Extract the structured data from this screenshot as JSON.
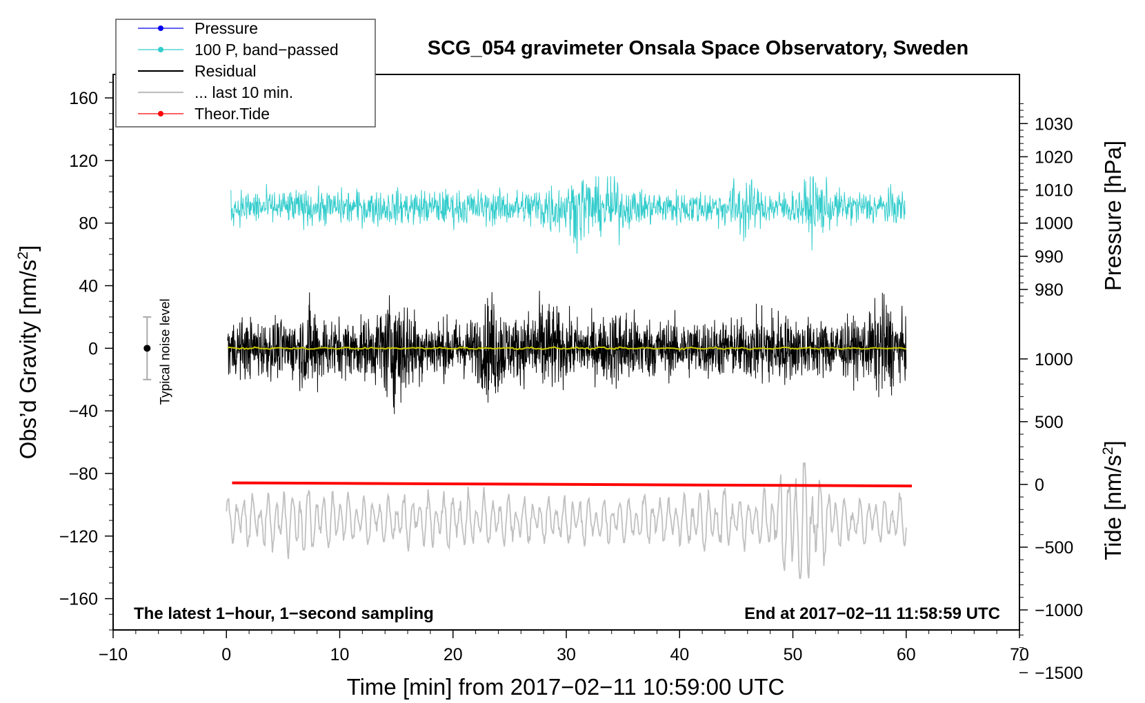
{
  "chart_data": {
    "type": "line",
    "title": "SCG_054 gravimeter Onsala Space Observatory, Sweden",
    "xlabel": "Time [min] from 2017−02−11 10:59:00 UTC",
    "ylabel_left_main": "Obs’d Gravity [nm/s",
    "ylabel_left_sup": "2",
    "ylabel_left_close": "]",
    "ylabel_right_pressure": "Pressure [hPa]",
    "ylabel_right_tide_main": "Tide [nm/s",
    "ylabel_right_tide_sup": "2",
    "ylabel_right_tide_close": "]",
    "xlim": [
      -10,
      70
    ],
    "ylim": [
      -180,
      175
    ],
    "x_ticks": [
      -10,
      0,
      10,
      20,
      30,
      40,
      50,
      60,
      70
    ],
    "x_tick_labels": [
      "−10",
      "0",
      "10",
      "20",
      "30",
      "40",
      "50",
      "60",
      "70"
    ],
    "y_ticks": [
      160,
      120,
      80,
      40,
      0,
      -40,
      -80,
      -120,
      -160
    ],
    "y_tick_labels": [
      "160",
      "120",
      "80",
      "40",
      "0",
      "−40",
      "−80",
      "−120",
      "−160"
    ],
    "pressure_ticks": [
      1030,
      1020,
      1010,
      1000,
      990,
      980
    ],
    "pressure_tick_labels": [
      "1030",
      "1020",
      "1010",
      "1000",
      "990",
      "980"
    ],
    "tide_ticks": [
      1000,
      500,
      0,
      -500,
      -1000,
      -1500
    ],
    "tide_tick_labels": [
      "1000",
      "500",
      "0",
      "−500",
      "−1000",
      "−1500"
    ],
    "pressure_scale": {
      "gravity_at_1000hPa": 80,
      "nm_s2_per_hPa": 2.12
    },
    "tide_scale": {
      "gravity_at_0": -87,
      "nm_s2_per_unit": 0.0802
    },
    "series": [
      {
        "name": "100 P, band−passed",
        "color": "#33cccc",
        "x_range": [
          0.4,
          59.9
        ],
        "center": 90,
        "amplitude": 8,
        "extremes": {
          "min": 50,
          "max": 110
        }
      },
      {
        "name": "Residual",
        "color": "#000000",
        "x_range": [
          0.1,
          60.0
        ],
        "center": 0,
        "amplitude": 14,
        "extremes": {
          "min": -42,
          "max": 40
        }
      },
      {
        "name": "Residual (smoothed)",
        "color": "#cccc00",
        "x_range": [
          0.1,
          60.0
        ],
        "center": 0,
        "amplitude": 1
      },
      {
        "name": "... last 10 min.",
        "color": "#c0c0c0",
        "x_range": [
          0.0,
          60.0
        ],
        "center": -110,
        "amplitude": 14,
        "extremes": {
          "min": -147,
          "max": -73
        }
      },
      {
        "name": "Theor.Tide",
        "color": "#ff0000",
        "x_range": [
          0.5,
          60.5
        ],
        "y_start": -86,
        "y_end": -88
      }
    ],
    "noise_bar": {
      "x": -7,
      "y": 0,
      "low": -20,
      "high": 20,
      "label": "Typical noise level"
    },
    "annotations": {
      "left": "The latest 1−hour, 1−second sampling",
      "right": "End at 2017−02−11 11:58:59 UTC"
    },
    "legend": {
      "placement": "top-left",
      "entries": [
        {
          "label": "Pressure",
          "color": "#0000ee",
          "style": "line-marker"
        },
        {
          "label": "100 P, band−passed",
          "color": "#33cccc",
          "style": "line-marker"
        },
        {
          "label": "Residual",
          "color": "#000000",
          "style": "line"
        },
        {
          "label": "... last 10 min.",
          "color": "#c0c0c0",
          "style": "line"
        },
        {
          "label": "Theor.Tide",
          "color": "#ff0000",
          "style": "line-marker"
        }
      ]
    }
  }
}
